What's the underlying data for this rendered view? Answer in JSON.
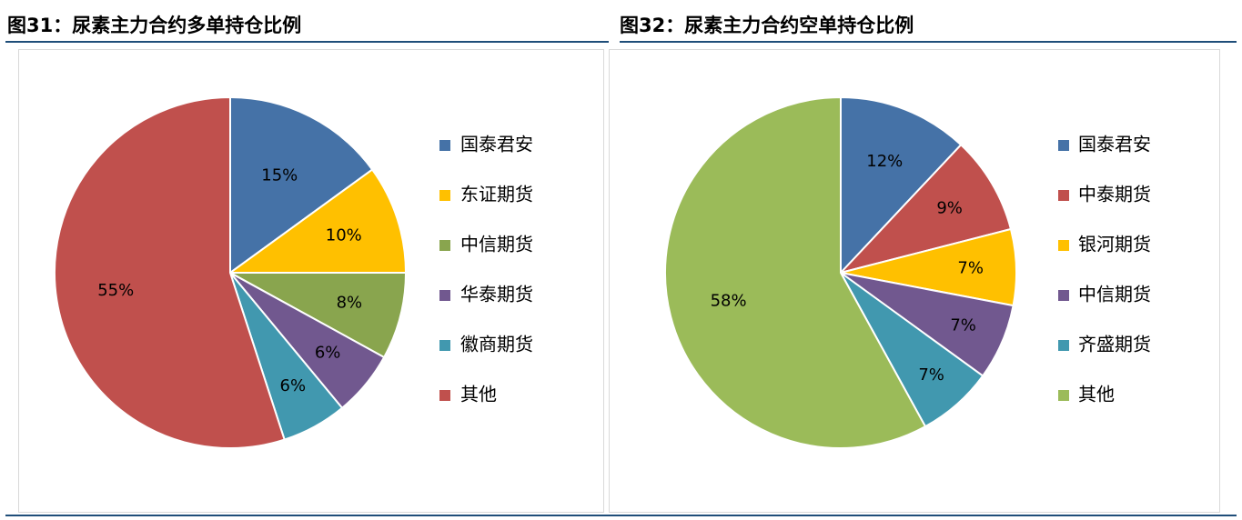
{
  "charts": {
    "chart_left": {
      "title": "图31：尿素主力合约多单持仓比例",
      "legend_items": [
        "国泰君安",
        "东证期货",
        "中信期货",
        "华泰期货",
        "徽商期货",
        "其他"
      ],
      "slice_labels": [
        "15%",
        "10%",
        "8%",
        "6%",
        "6%",
        "55%"
      ]
    },
    "chart_right": {
      "title": "图32：尿素主力合约空单持仓比例",
      "legend_items": [
        "国泰君安",
        "中泰期货",
        "银河期货",
        "中信期货",
        "齐盛期货",
        "其他"
      ],
      "slice_labels": [
        "12%",
        "9%",
        "7%",
        "7%",
        "7%",
        "58%"
      ]
    }
  },
  "chart_data": [
    {
      "type": "pie",
      "title": "图31：尿素主力合约多单持仓比例",
      "categories": [
        "国泰君安",
        "东证期货",
        "中信期货",
        "华泰期货",
        "徽商期货",
        "其他"
      ],
      "values": [
        15,
        10,
        8,
        6,
        6,
        55
      ],
      "colors": [
        "#4572a7",
        "#ffc000",
        "#89a54e",
        "#71588f",
        "#4198af",
        "#c0504d"
      ],
      "legend": "right"
    },
    {
      "type": "pie",
      "title": "图32：尿素主力合约空单持仓比例",
      "categories": [
        "国泰君安",
        "中泰期货",
        "银河期货",
        "中信期货",
        "齐盛期货",
        "其他"
      ],
      "values": [
        12,
        9,
        7,
        7,
        7,
        58
      ],
      "colors": [
        "#4572a7",
        "#c0504d",
        "#ffc000",
        "#71588f",
        "#4198af",
        "#9bbb59"
      ],
      "legend": "right"
    }
  ]
}
